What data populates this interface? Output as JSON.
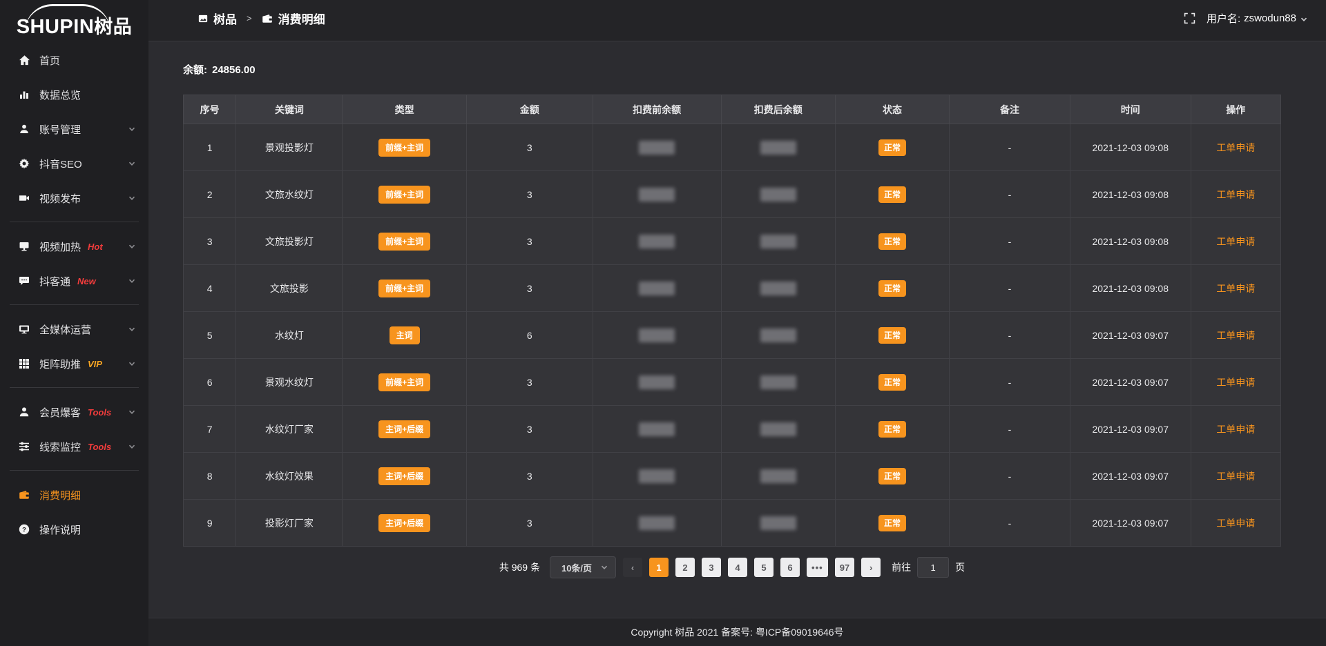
{
  "colors": {
    "accent": "#f7941e",
    "tag_red": "#f23c3c",
    "tag_vip": "#f9a623"
  },
  "brand": {
    "name_en": "SHUPIN",
    "name_cn": "树品"
  },
  "topbar": {
    "breadcrumb": [
      {
        "icon": "app",
        "label": "树品"
      },
      {
        "icon": "wallet",
        "label": "消费明细"
      }
    ],
    "separator": ">",
    "user_label": "用户名:",
    "username": "zswodun88"
  },
  "sidebar": {
    "items": [
      {
        "icon": "home",
        "label": "首页"
      },
      {
        "icon": "bar-chart",
        "label": "数据总览"
      },
      {
        "icon": "user",
        "label": "账号管理",
        "chevron": true
      },
      {
        "icon": "gear",
        "label": "抖音SEO",
        "chevron": true
      },
      {
        "icon": "video",
        "label": "视频发布",
        "chevron": true
      },
      {
        "divider": true
      },
      {
        "icon": "screen-play",
        "label": "视频加热",
        "tag": "Hot",
        "tag_color": "red",
        "chevron": true
      },
      {
        "icon": "chat",
        "label": "抖客通",
        "tag": "New",
        "tag_color": "red",
        "chevron": true
      },
      {
        "divider": true
      },
      {
        "icon": "monitor",
        "label": "全媒体运营",
        "chevron": true
      },
      {
        "icon": "grid",
        "label": "矩阵助推",
        "tag": "VIP",
        "tag_color": "orange",
        "chevron": true
      },
      {
        "divider": true
      },
      {
        "icon": "user-solid",
        "label": "会员爆客",
        "tag": "Tools",
        "tag_color": "red",
        "chevron": true
      },
      {
        "icon": "sliders",
        "label": "线索监控",
        "tag": "Tools",
        "tag_color": "red",
        "chevron": true
      },
      {
        "divider": true
      },
      {
        "icon": "wallet",
        "label": "消费明细",
        "active": true
      },
      {
        "icon": "question",
        "label": "操作说明"
      }
    ]
  },
  "content": {
    "balance_label": "余额:",
    "balance_value": "24856.00",
    "table": {
      "columns": [
        "序号",
        "关键词",
        "类型",
        "金额",
        "扣费前余额",
        "扣费后余额",
        "状态",
        "备注",
        "时间",
        "操作"
      ],
      "rows": [
        {
          "index": "1",
          "keyword": "景观投影灯",
          "type": "前缀+主词",
          "amount": "3",
          "status": "正常",
          "remark": "-",
          "time": "2021-12-03 09:08",
          "action": "工单申请"
        },
        {
          "index": "2",
          "keyword": "文旅水纹灯",
          "type": "前缀+主词",
          "amount": "3",
          "status": "正常",
          "remark": "-",
          "time": "2021-12-03 09:08",
          "action": "工单申请"
        },
        {
          "index": "3",
          "keyword": "文旅投影灯",
          "type": "前缀+主词",
          "amount": "3",
          "status": "正常",
          "remark": "-",
          "time": "2021-12-03 09:08",
          "action": "工单申请"
        },
        {
          "index": "4",
          "keyword": "文旅投影",
          "type": "前缀+主词",
          "amount": "3",
          "status": "正常",
          "remark": "-",
          "time": "2021-12-03 09:08",
          "action": "工单申请"
        },
        {
          "index": "5",
          "keyword": "水纹灯",
          "type": "主词",
          "amount": "6",
          "status": "正常",
          "remark": "-",
          "time": "2021-12-03 09:07",
          "action": "工单申请"
        },
        {
          "index": "6",
          "keyword": "景观水纹灯",
          "type": "前缀+主词",
          "amount": "3",
          "status": "正常",
          "remark": "-",
          "time": "2021-12-03 09:07",
          "action": "工单申请"
        },
        {
          "index": "7",
          "keyword": "水纹灯厂家",
          "type": "主词+后缀",
          "amount": "3",
          "status": "正常",
          "remark": "-",
          "time": "2021-12-03 09:07",
          "action": "工单申请"
        },
        {
          "index": "8",
          "keyword": "水纹灯效果",
          "type": "主词+后缀",
          "amount": "3",
          "status": "正常",
          "remark": "-",
          "time": "2021-12-03 09:07",
          "action": "工单申请"
        },
        {
          "index": "9",
          "keyword": "投影灯厂家",
          "type": "主词+后缀",
          "amount": "3",
          "status": "正常",
          "remark": "-",
          "time": "2021-12-03 09:07",
          "action": "工单申请"
        }
      ]
    },
    "pagination": {
      "total": "共 969 条",
      "page_size": "10条/页",
      "prev": "‹",
      "next": "›",
      "pages": [
        "1",
        "2",
        "3",
        "4",
        "5",
        "6",
        "•••",
        "97"
      ],
      "active_page": "1",
      "goto_label": "前往",
      "goto_value": "1",
      "goto_unit": "页"
    }
  },
  "footer": {
    "copyright": "Copyright 树品 2021 备案号: 粤ICP备09019646号"
  }
}
